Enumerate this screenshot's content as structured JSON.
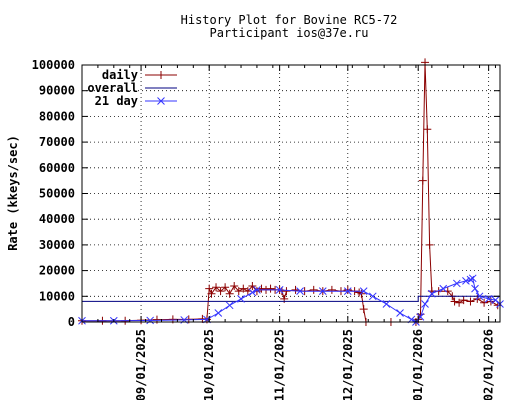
{
  "chart_data": {
    "type": "line",
    "title": "History Plot for Bovine RC5-72",
    "subtitle": "Participant ios@37e.ru",
    "ylabel": "Rate (kkeys/sec)",
    "xlabel": "",
    "ylim": [
      0,
      100000
    ],
    "xlim": [
      "2025-08-06",
      "2026-02-06"
    ],
    "grid": true,
    "legend_position": "top-left",
    "y_ticks": [
      "0",
      "10000",
      "20000",
      "30000",
      "40000",
      "50000",
      "60000",
      "70000",
      "80000",
      "90000",
      "100000"
    ],
    "x_ticks": [
      "09/01/2025",
      "10/01/2025",
      "11/01/2025",
      "12/01/2025",
      "01/01/2026",
      "02/01/2026"
    ],
    "x_tick_dates": [
      "2025-09-01",
      "2025-10-01",
      "2025-11-01",
      "2025-12-01",
      "2026-01-01",
      "2026-02-01"
    ],
    "colors": {
      "daily": "#8b0000",
      "overall": "#000080",
      "21day": "#3535ff"
    },
    "series": [
      {
        "name": "daily",
        "color": "#8b0000",
        "marker": "plus",
        "points": [
          [
            "2025-08-06",
            500
          ],
          [
            "2025-08-15",
            500
          ],
          [
            "2025-08-25",
            500
          ],
          [
            "2025-09-01",
            700
          ],
          [
            "2025-09-08",
            900
          ],
          [
            "2025-09-15",
            1000
          ],
          [
            "2025-09-22",
            1000
          ],
          [
            "2025-09-28",
            1200
          ],
          [
            "2025-09-30",
            1000
          ],
          [
            "2025-10-01",
            13000
          ],
          [
            "2025-10-02",
            11000
          ],
          [
            "2025-10-04",
            13500
          ],
          [
            "2025-10-06",
            12000
          ],
          [
            "2025-10-08",
            13500
          ],
          [
            "2025-10-10",
            11000
          ],
          [
            "2025-10-12",
            14000
          ],
          [
            "2025-10-14",
            12000
          ],
          [
            "2025-10-16",
            13000
          ],
          [
            "2025-10-18",
            12000
          ],
          [
            "2025-10-20",
            14000
          ],
          [
            "2025-10-22",
            12000
          ],
          [
            "2025-10-24",
            13000
          ],
          [
            "2025-10-26",
            12500
          ],
          [
            "2025-10-28",
            13000
          ],
          [
            "2025-10-30",
            12500
          ],
          [
            "2025-11-01",
            12500
          ],
          [
            "2025-11-02",
            12000
          ],
          [
            "2025-11-03",
            9000
          ],
          [
            "2025-11-04",
            12000
          ],
          [
            "2025-11-08",
            12500
          ],
          [
            "2025-11-12",
            12000
          ],
          [
            "2025-11-16",
            12500
          ],
          [
            "2025-11-20",
            12000
          ],
          [
            "2025-11-24",
            12500
          ],
          [
            "2025-11-28",
            12000
          ],
          [
            "2025-12-01",
            12500
          ],
          [
            "2025-12-04",
            12000
          ],
          [
            "2025-12-06",
            11500
          ],
          [
            "2025-12-07",
            11000
          ],
          [
            "2025-12-08",
            5000
          ],
          [
            "2025-12-09",
            0
          ],
          [
            "2025-12-20",
            0
          ],
          [
            "2025-12-31",
            0
          ],
          [
            "2026-01-01",
            1000
          ],
          [
            "2026-01-02",
            3000
          ],
          [
            "2026-01-03",
            55000
          ],
          [
            "2026-01-04",
            101000
          ],
          [
            "2026-01-05",
            75000
          ],
          [
            "2026-01-06",
            30000
          ],
          [
            "2026-01-07",
            12000
          ],
          [
            "2026-01-10",
            12000
          ],
          [
            "2026-01-14",
            12000
          ],
          [
            "2026-01-16",
            10000
          ],
          [
            "2026-01-17",
            8000
          ],
          [
            "2026-01-19",
            7500
          ],
          [
            "2026-01-21",
            8500
          ],
          [
            "2026-01-24",
            8000
          ],
          [
            "2026-01-27",
            9000
          ],
          [
            "2026-01-30",
            7500
          ],
          [
            "2026-02-02",
            8000
          ],
          [
            "2026-02-05",
            6500
          ]
        ]
      },
      {
        "name": "overall",
        "color": "#000080",
        "marker": "none",
        "points": [
          [
            "2025-08-06",
            8000
          ],
          [
            "2026-01-01",
            8000
          ],
          [
            "2026-01-01",
            10000
          ],
          [
            "2026-02-06",
            10000
          ]
        ]
      },
      {
        "name": "21 day",
        "color": "#3535ff",
        "marker": "cross",
        "points": [
          [
            "2025-08-06",
            500
          ],
          [
            "2025-08-20",
            500
          ],
          [
            "2025-09-05",
            600
          ],
          [
            "2025-09-20",
            800
          ],
          [
            "2025-09-30",
            1000
          ],
          [
            "2025-10-05",
            3500
          ],
          [
            "2025-10-10",
            6500
          ],
          [
            "2025-10-15",
            9000
          ],
          [
            "2025-10-20",
            11500
          ],
          [
            "2025-10-22",
            12500
          ],
          [
            "2025-11-01",
            12500
          ],
          [
            "2025-11-10",
            12000
          ],
          [
            "2025-11-20",
            12000
          ],
          [
            "2025-12-01",
            12000
          ],
          [
            "2025-12-08",
            12000
          ],
          [
            "2025-12-12",
            10000
          ],
          [
            "2025-12-18",
            7000
          ],
          [
            "2025-12-24",
            3500
          ],
          [
            "2025-12-29",
            1000
          ],
          [
            "2025-12-31",
            0
          ],
          [
            "2026-01-02",
            2000
          ],
          [
            "2026-01-04",
            7000
          ],
          [
            "2026-01-07",
            11000
          ],
          [
            "2026-01-12",
            13000
          ],
          [
            "2026-01-18",
            15000
          ],
          [
            "2026-01-22",
            16000
          ],
          [
            "2026-01-24",
            16500
          ],
          [
            "2026-01-25",
            17000
          ],
          [
            "2026-01-26",
            13000
          ],
          [
            "2026-01-28",
            10000
          ],
          [
            "2026-02-01",
            9000
          ],
          [
            "2026-02-04",
            8500
          ],
          [
            "2026-02-06",
            7000
          ]
        ]
      }
    ]
  }
}
